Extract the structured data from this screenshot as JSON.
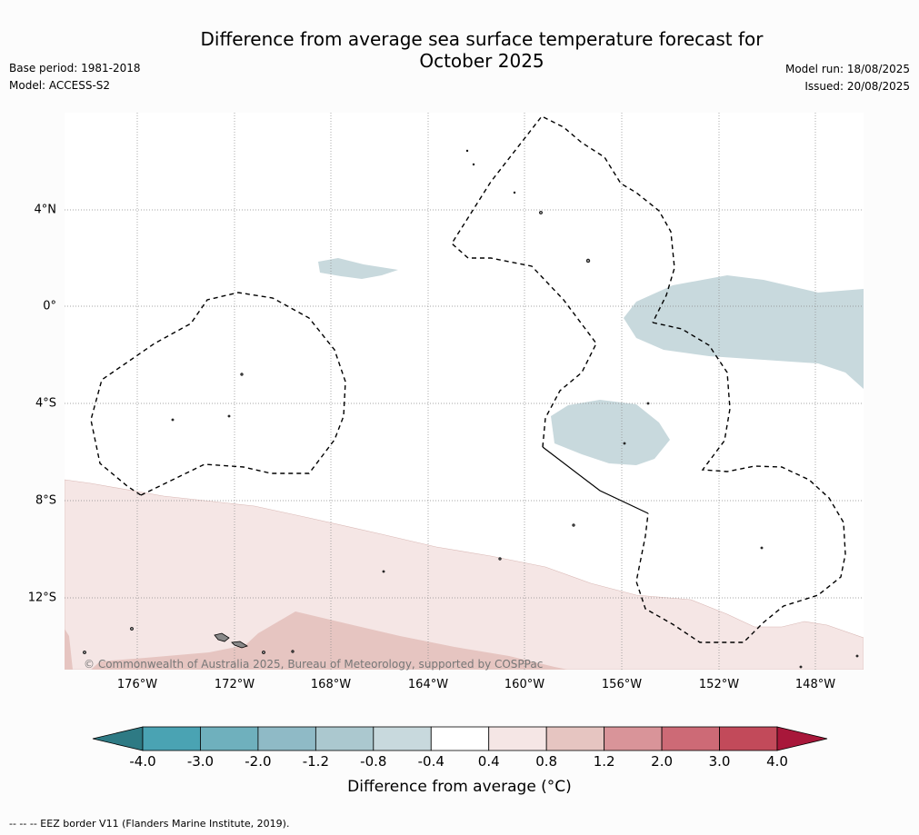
{
  "title_line1": "Difference from average sea surface temperature forecast for",
  "title_line2": "October 2025",
  "meta_left": {
    "base_period": "Base period: 1981-2018",
    "model": "Model: ACCESS-S2"
  },
  "meta_right": {
    "model_run": "Model run: 18/08/2025",
    "issued": "Issued: 20/08/2025"
  },
  "lat_labels": [
    "4°N",
    "0°",
    "4°S",
    "8°S",
    "12°S"
  ],
  "lon_labels": [
    "176°W",
    "172°W",
    "168°W",
    "164°W",
    "160°W",
    "156°W",
    "152°W",
    "148°W"
  ],
  "copyright": "© Commonwealth of Australia 2025, Bureau of Meteorology, supported by COSPPac",
  "colorbar": {
    "ticks": [
      "-4.0",
      "-3.0",
      "-2.0",
      "-1.2",
      "-0.8",
      "-0.4",
      "0.4",
      "0.8",
      "1.2",
      "2.0",
      "3.0",
      "4.0"
    ],
    "colors": [
      "#2e7a84",
      "#4aa3b3",
      "#6fb0bd",
      "#8fbac6",
      "#abc8cf",
      "#c8d9dd",
      "#ffffff",
      "#f5e6e5",
      "#e6c5c1",
      "#d99499",
      "#cd6a76",
      "#c24a5a",
      "#a8173a"
    ],
    "label": "Difference from average (°C)"
  },
  "footnote": "--  --  -- EEZ border V11 (Flanders Marine Institute, 2019).",
  "colors": {
    "cool_anomaly": "#c8d9dd",
    "warm_anomaly_light": "#f5e6e5",
    "warm_anomaly_mid": "#e6c5c1",
    "grid": "#888888",
    "eez": "#000000"
  }
}
